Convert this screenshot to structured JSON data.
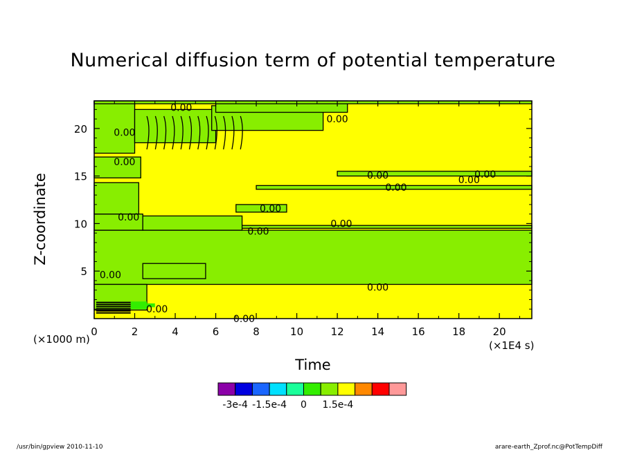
{
  "chart_data": {
    "type": "contour",
    "title": "Numerical diffusion term of potential temperature",
    "xlabel": "Time",
    "ylabel": "Z-coordinate",
    "x_unit_label": "(×1E4 s)",
    "y_unit_label": "(×1000 m)",
    "xlim": [
      0,
      21.6
    ],
    "ylim": [
      0,
      22.9
    ],
    "x_ticks": [
      0,
      2,
      4,
      6,
      8,
      10,
      12,
      14,
      16,
      18,
      20
    ],
    "y_ticks": [
      5,
      10,
      15,
      20
    ],
    "contour_labels": [
      {
        "text": "0.00",
        "x": 4.3,
        "y": 22.2
      },
      {
        "text": "0.00",
        "x": 12.0,
        "y": 21.0
      },
      {
        "text": "0.00",
        "x": 1.5,
        "y": 19.6
      },
      {
        "text": "0.00",
        "x": 1.5,
        "y": 16.5
      },
      {
        "text": "0.00",
        "x": 14.0,
        "y": 15.1
      },
      {
        "text": "0.00",
        "x": 19.3,
        "y": 15.2
      },
      {
        "text": "0.00",
        "x": 18.5,
        "y": 14.6
      },
      {
        "text": "0.00",
        "x": 14.9,
        "y": 13.8
      },
      {
        "text": "0.00",
        "x": 8.7,
        "y": 11.6
      },
      {
        "text": "0.00",
        "x": 1.7,
        "y": 10.7
      },
      {
        "text": "0.00",
        "x": 12.2,
        "y": 10.0
      },
      {
        "text": "0.00",
        "x": 8.1,
        "y": 9.2
      },
      {
        "text": "0.00",
        "x": 0.8,
        "y": 4.6
      },
      {
        "text": "0.00",
        "x": 14.0,
        "y": 3.3
      },
      {
        "text": "0.00",
        "x": 3.1,
        "y": 1.0
      },
      {
        "text": "0.00",
        "x": 7.4,
        "y": 0.0
      }
    ],
    "colorbar": {
      "colors": [
        "#8b00a8",
        "#0000e0",
        "#1a66ff",
        "#00e0ff",
        "#1aff9a",
        "#33ee00",
        "#88ee00",
        "#ffff00",
        "#ff8800",
        "#ff0000",
        "#ff9999"
      ],
      "tick_labels": [
        "-3e-4",
        "-1.5e-4",
        "0",
        "1.5e-4"
      ]
    },
    "regions": {
      "positive_color": "#ffff00",
      "negative_color": "#88ee00",
      "strong_negative_color": "#33ee00"
    }
  },
  "footer": {
    "left": "/usr/bin/gpview   2010-11-10",
    "right": "arare-earth_Zprof.nc@PotTempDiff"
  }
}
